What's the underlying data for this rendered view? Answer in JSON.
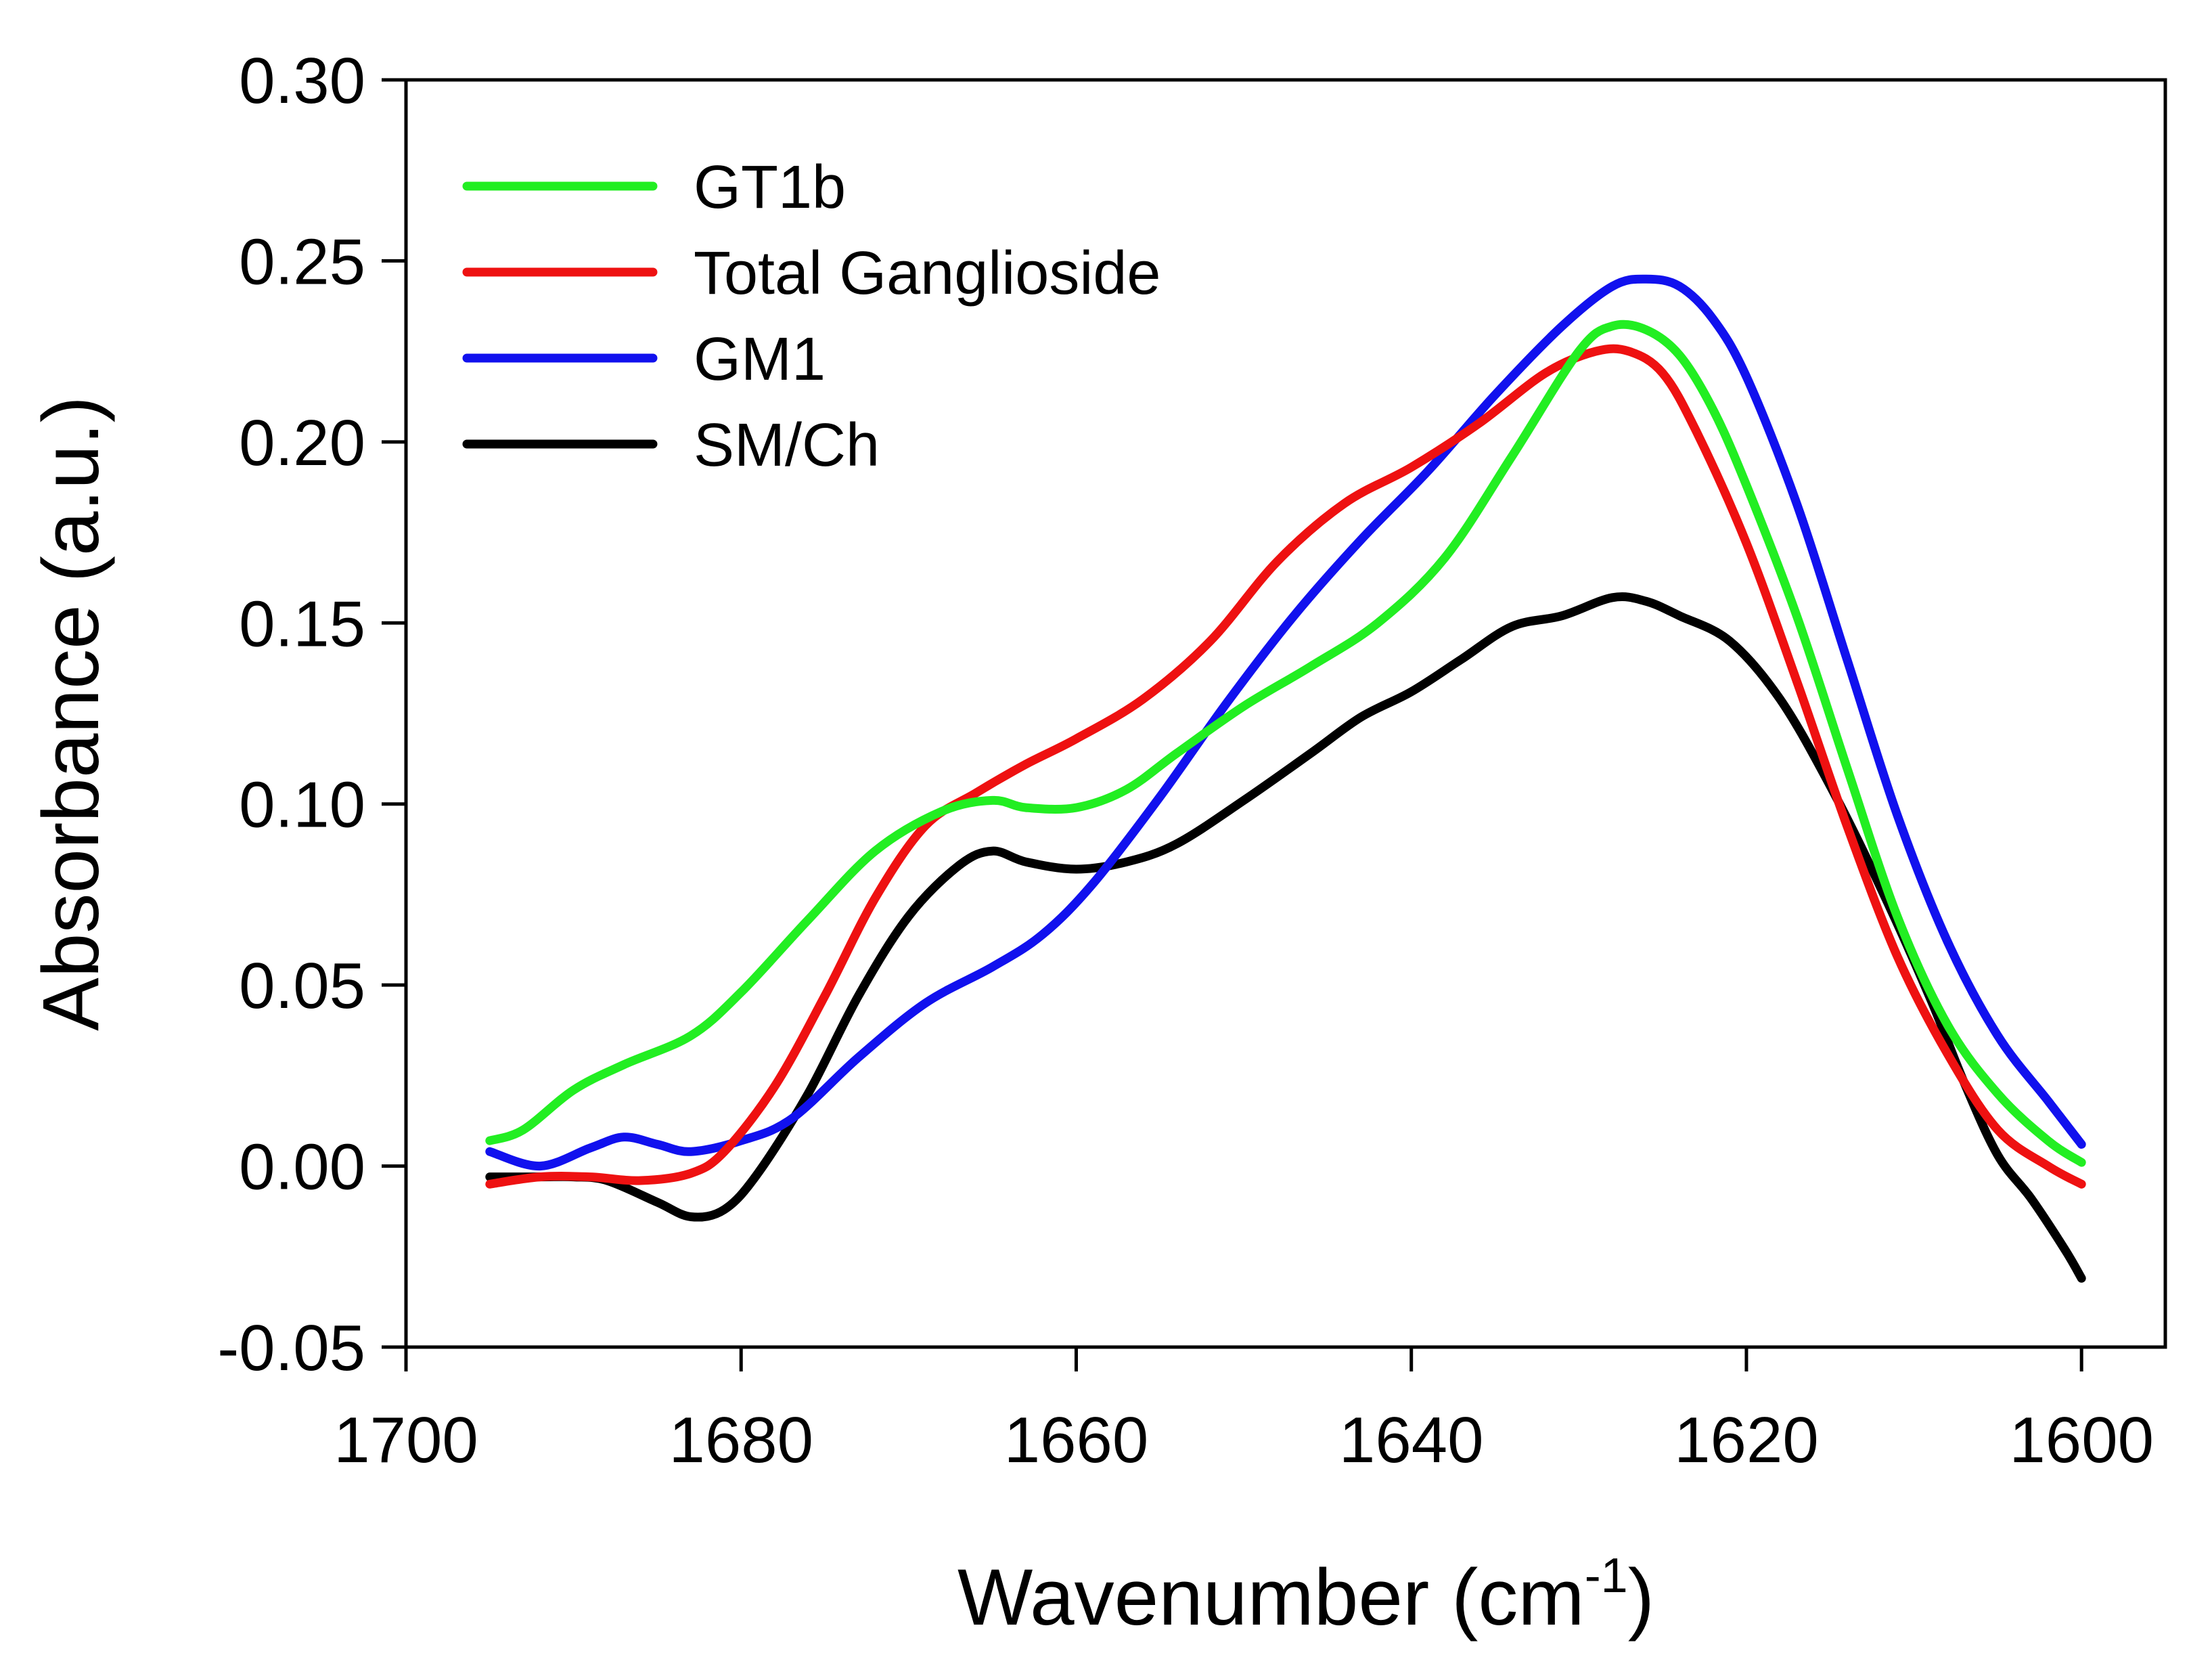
{
  "chart_data": {
    "type": "line",
    "title": "",
    "xlabel": "Wavenumber (cm",
    "xlabel_sup": "-1",
    "xlabel_close": ")",
    "ylabel": "Absorbance (a.u.)",
    "xlim": [
      1700,
      1595
    ],
    "ylim": [
      -0.05,
      0.3
    ],
    "x_reversed": true,
    "grid": false,
    "legend_position": "top-left",
    "xticks": [
      1700,
      1680,
      1660,
      1640,
      1620,
      1600
    ],
    "xtick_labels": [
      "1700",
      "1680",
      "1660",
      "1640",
      "1620",
      "1600"
    ],
    "yticks": [
      -0.05,
      0.0,
      0.05,
      0.1,
      0.15,
      0.2,
      0.25,
      0.3
    ],
    "ytick_labels": [
      "-0.05",
      "0.00",
      "0.05",
      "0.10",
      "0.15",
      "0.20",
      "0.25",
      "0.30"
    ],
    "series": [
      {
        "name": "GT1b",
        "color": "#22ee22",
        "x": [
          1695,
          1693,
          1690,
          1687,
          1683,
          1680,
          1676,
          1672,
          1668,
          1665,
          1663,
          1660,
          1657,
          1654,
          1650,
          1646,
          1642,
          1638,
          1634,
          1630,
          1628,
          1626,
          1624,
          1622,
          1620,
          1617,
          1614,
          1611,
          1608,
          1605,
          1602,
          1600
        ],
        "y": [
          0.007,
          0.01,
          0.021,
          0.028,
          0.036,
          0.048,
          0.068,
          0.087,
          0.098,
          0.101,
          0.099,
          0.099,
          0.104,
          0.114,
          0.127,
          0.138,
          0.15,
          0.168,
          0.196,
          0.225,
          0.232,
          0.231,
          0.224,
          0.209,
          0.188,
          0.152,
          0.11,
          0.069,
          0.039,
          0.02,
          0.007,
          0.001
        ]
      },
      {
        "name": "Total Ganglioside",
        "color": "#ee1111",
        "x": [
          1695,
          1692,
          1689,
          1686,
          1683,
          1681,
          1678,
          1675,
          1672,
          1669,
          1666,
          1663,
          1660,
          1656,
          1652,
          1648,
          1644,
          1640,
          1636,
          1632,
          1629,
          1627,
          1625,
          1623,
          1620,
          1617,
          1614,
          1611,
          1608,
          1605,
          1602,
          1600
        ],
        "y": [
          -0.005,
          -0.003,
          -0.003,
          -0.004,
          -0.002,
          0.004,
          0.022,
          0.047,
          0.074,
          0.094,
          0.103,
          0.111,
          0.118,
          0.129,
          0.145,
          0.167,
          0.183,
          0.193,
          0.205,
          0.219,
          0.225,
          0.225,
          0.219,
          0.203,
          0.172,
          0.134,
          0.094,
          0.058,
          0.031,
          0.01,
          0.0,
          -0.005
        ]
      },
      {
        "name": "GM1",
        "color": "#1111ee",
        "x": [
          1695,
          1692,
          1689,
          1687,
          1685,
          1683,
          1680,
          1677,
          1673,
          1669,
          1665,
          1662,
          1659,
          1655,
          1651,
          1647,
          1643,
          1639,
          1635,
          1631,
          1628,
          1626,
          1624,
          1622,
          1620,
          1617,
          1614,
          1611,
          1608,
          1605,
          1602,
          1600
        ],
        "y": [
          0.004,
          0.0,
          0.005,
          0.008,
          0.006,
          0.004,
          0.007,
          0.013,
          0.03,
          0.045,
          0.055,
          0.064,
          0.078,
          0.102,
          0.128,
          0.152,
          0.173,
          0.192,
          0.213,
          0.232,
          0.243,
          0.245,
          0.243,
          0.234,
          0.218,
          0.183,
          0.14,
          0.097,
          0.062,
          0.036,
          0.018,
          0.006
        ]
      },
      {
        "name": "SM/Ch",
        "color": "#000000",
        "x": [
          1695,
          1692,
          1690,
          1688,
          1685,
          1683,
          1681,
          1679,
          1676,
          1673,
          1670,
          1667,
          1665,
          1663,
          1660,
          1657,
          1654,
          1650,
          1646,
          1643,
          1640,
          1637,
          1634,
          1631,
          1628,
          1626,
          1624,
          1621,
          1618,
          1615,
          1612,
          1609,
          1607,
          1605,
          1603,
          1601,
          1600
        ],
        "y": [
          -0.003,
          -0.003,
          -0.003,
          -0.004,
          -0.01,
          -0.014,
          -0.012,
          -0.002,
          0.02,
          0.047,
          0.069,
          0.083,
          0.087,
          0.084,
          0.082,
          0.084,
          0.089,
          0.101,
          0.114,
          0.124,
          0.131,
          0.14,
          0.149,
          0.152,
          0.157,
          0.156,
          0.152,
          0.145,
          0.129,
          0.105,
          0.077,
          0.046,
          0.023,
          0.003,
          -0.009,
          -0.023,
          -0.031
        ]
      }
    ]
  }
}
